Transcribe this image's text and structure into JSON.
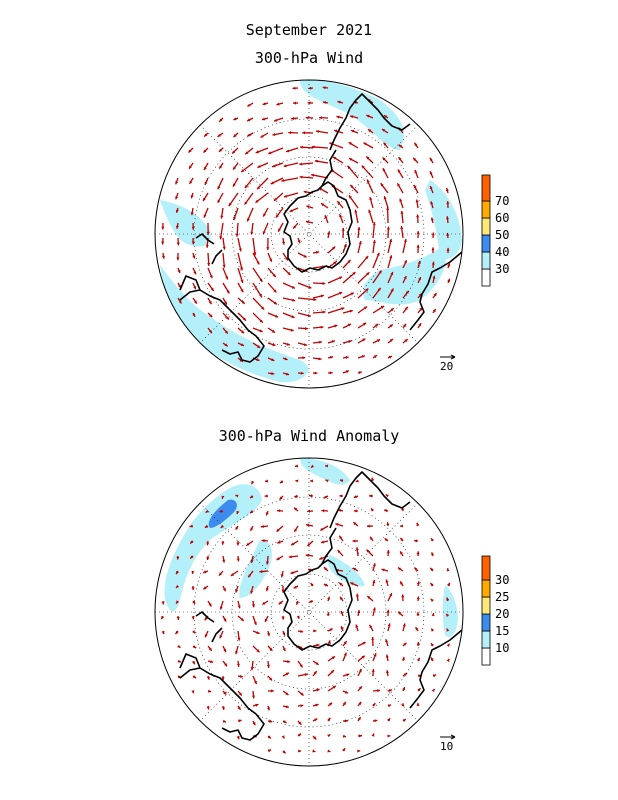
{
  "title": "September 2021",
  "panels": [
    {
      "title": "300-hPa Wind",
      "scale_label": "20",
      "colorbar": {
        "labels": [
          "30",
          "40",
          "50",
          "60",
          "70"
        ],
        "colors": [
          "#ffffff",
          "#b4f0fa",
          "#3c8cf0",
          "#ffe877",
          "#ffaa00",
          "#ff6000"
        ]
      }
    },
    {
      "title": "300-hPa Wind Anomaly",
      "scale_label": "10",
      "colorbar": {
        "labels": [
          "10",
          "15",
          "20",
          "25",
          "30"
        ],
        "colors": [
          "#ffffff",
          "#b4f0fa",
          "#3c8cf0",
          "#ffe877",
          "#ffaa00",
          "#ff6000"
        ]
      }
    }
  ],
  "colors": {
    "vector": "#c00000",
    "coast": "#000000",
    "grid": "#000000"
  }
}
